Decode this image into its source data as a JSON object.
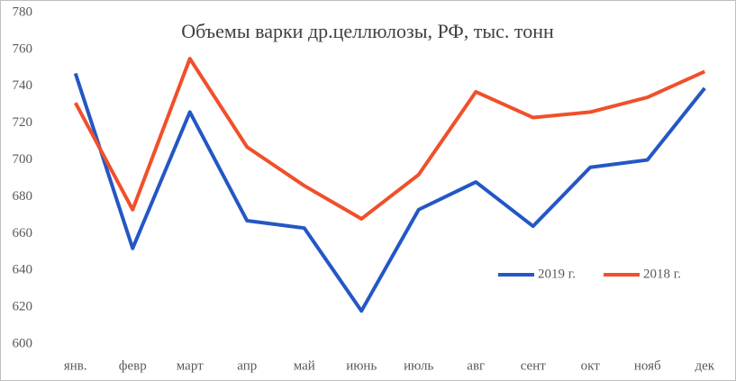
{
  "chart_data": {
    "type": "line",
    "title": "Объемы варки др.целлюлозы, РФ,  тыс. тонн",
    "categories": [
      "янв.",
      "февр",
      "март",
      "апр",
      "май",
      "июнь",
      "июль",
      "авг",
      "сент",
      "окт",
      "нояб",
      "дек"
    ],
    "series": [
      {
        "name": "2019 г.",
        "color": "#2457c5",
        "values": [
          747,
          652,
          726,
          667,
          663,
          618,
          673,
          688,
          664,
          696,
          700,
          739
        ]
      },
      {
        "name": "2018 г.",
        "color": "#f0502a",
        "values": [
          731,
          673,
          755,
          707,
          686,
          668,
          692,
          737,
          723,
          726,
          734,
          748
        ]
      }
    ],
    "ylim": [
      600,
      780
    ],
    "yticks": [
      600,
      620,
      640,
      660,
      680,
      700,
      720,
      740,
      760,
      780
    ],
    "grid": false
  }
}
